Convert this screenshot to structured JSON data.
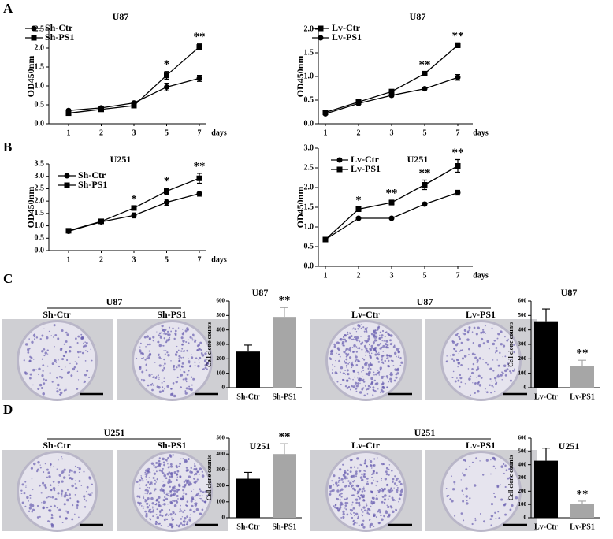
{
  "panel_labels": [
    "A",
    "B",
    "C",
    "D"
  ],
  "photo_groups": [
    {
      "title": "U87",
      "labels": [
        "Sh-Ctr",
        "Sh-PS1"
      ]
    },
    {
      "title": "U87",
      "labels": [
        "Lv-Ctr",
        "Lv-PS1"
      ]
    },
    {
      "title": "U251",
      "labels": [
        "Sh-Ctr",
        "Sh-PS1"
      ]
    },
    {
      "title": "U251",
      "labels": [
        "Lv-Ctr",
        "Lv-PS1"
      ]
    }
  ],
  "chart_data": [
    {
      "type": "line",
      "title": "U87",
      "x_label": "days",
      "y_label": "OD450nm",
      "categories": [
        "1",
        "2",
        "3",
        "5",
        "7"
      ],
      "ylim": [
        0,
        2.5
      ],
      "yticks": [
        {
          "value": 0,
          "label": "0.0"
        },
        0.5,
        {
          "value": 1,
          "label": "1.0"
        },
        1.5,
        {
          "value": 2,
          "label": "2.0"
        },
        2.5
      ],
      "series": [
        {
          "name": "Sh-Ctr",
          "color": "#000000",
          "marker": "circle",
          "values": [
            0.35,
            0.42,
            0.55,
            0.97,
            1.2
          ],
          "errors": [
            0.03,
            0.03,
            0.04,
            0.1,
            0.08
          ]
        },
        {
          "name": "Sh-PS1",
          "color": "#000000",
          "marker": "square",
          "values": [
            0.28,
            0.38,
            0.48,
            1.28,
            2.03
          ],
          "errors": [
            0.03,
            0.03,
            0.04,
            0.1,
            0.08
          ]
        }
      ],
      "annotations": [
        {
          "category": "5",
          "label": "*"
        },
        {
          "category": "7",
          "label": "**"
        }
      ]
    },
    {
      "type": "line",
      "title": "U87",
      "x_label": "days",
      "y_label": "OD450nm",
      "categories": [
        "1",
        "2",
        "3",
        "5",
        "7"
      ],
      "ylim": [
        0,
        2.0
      ],
      "yticks": [
        {
          "value": 0,
          "label": "0.0"
        },
        0.5,
        {
          "value": 1,
          "label": "1.0"
        },
        1.5,
        {
          "value": 2,
          "label": "2.0"
        }
      ],
      "series": [
        {
          "name": "Lv-Ctr",
          "color": "#000000",
          "marker": "square",
          "values": [
            0.24,
            0.46,
            0.68,
            1.06,
            1.66
          ],
          "errors": [
            0.02,
            0.03,
            0.03,
            0.04,
            0.05
          ]
        },
        {
          "name": "Lv-PS1",
          "color": "#000000",
          "marker": "circle",
          "values": [
            0.21,
            0.43,
            0.6,
            0.74,
            0.98
          ],
          "errors": [
            0.02,
            0.03,
            0.03,
            0.02,
            0.06
          ]
        }
      ],
      "annotations": [
        {
          "category": "5",
          "label": "**"
        },
        {
          "category": "7",
          "label": "**"
        }
      ]
    },
    {
      "type": "line",
      "title": "U251",
      "x_label": "days",
      "y_label": "OD450nm",
      "categories": [
        "1",
        "2",
        "3",
        "5",
        "7"
      ],
      "ylim": [
        0,
        3.5
      ],
      "yticks": [
        {
          "value": 0,
          "label": "0.0"
        },
        0.5,
        {
          "value": 1,
          "label": "1.0"
        },
        1.5,
        {
          "value": 2,
          "label": "2.0"
        },
        2.5,
        {
          "value": 3,
          "label": "3.0"
        },
        3.5
      ],
      "series": [
        {
          "name": "Sh-Ctr",
          "color": "#000000",
          "marker": "circle",
          "values": [
            0.78,
            1.16,
            1.42,
            1.95,
            2.3
          ],
          "errors": [
            0.04,
            0.04,
            0.1,
            0.12,
            0.1
          ]
        },
        {
          "name": "Sh-PS1",
          "color": "#000000",
          "marker": "square",
          "values": [
            0.8,
            1.18,
            1.72,
            2.4,
            2.92
          ],
          "errors": [
            0.04,
            0.04,
            0.08,
            0.12,
            0.2
          ]
        }
      ],
      "annotations": [
        {
          "category": "3",
          "label": "*"
        },
        {
          "category": "5",
          "label": "*"
        },
        {
          "category": "7",
          "label": "**"
        }
      ]
    },
    {
      "type": "line",
      "title": "U251",
      "x_label": "days",
      "y_label": "OD450nm",
      "categories": [
        "1",
        "2",
        "3",
        "5",
        "7"
      ],
      "ylim": [
        0,
        3.0
      ],
      "yticks": [
        {
          "value": 0,
          "label": "0.0"
        },
        0.5,
        {
          "value": 1,
          "label": "1.0"
        },
        1.5,
        {
          "value": 2,
          "label": "2.0"
        },
        2.5,
        {
          "value": 3,
          "label": "3.0"
        }
      ],
      "series": [
        {
          "name": "Lv-Ctr",
          "color": "#000000",
          "marker": "circle",
          "values": [
            0.68,
            1.22,
            1.22,
            1.58,
            1.87
          ],
          "errors": [
            0.03,
            0.03,
            0.03,
            0.04,
            0.06
          ]
        },
        {
          "name": "Lv-PS1",
          "color": "#000000",
          "marker": "square",
          "values": [
            0.68,
            1.45,
            1.62,
            2.07,
            2.55
          ],
          "errors": [
            0.03,
            0.05,
            0.06,
            0.12,
            0.16
          ]
        }
      ],
      "annotations": [
        {
          "category": "2",
          "label": "*"
        },
        {
          "category": "3",
          "label": "**"
        },
        {
          "category": "5",
          "label": "**"
        },
        {
          "category": "7",
          "label": "**"
        }
      ]
    },
    {
      "type": "bar",
      "title": "U87",
      "y_label": "Cell clone counts",
      "categories": [
        "Sh-Ctr",
        "Sh-PS1"
      ],
      "values": [
        250,
        490
      ],
      "errors": [
        45,
        65
      ],
      "colors": [
        "#000000",
        "#a6a6a6"
      ],
      "ylim": [
        0,
        600
      ],
      "yticks": [
        0,
        100,
        200,
        300,
        400,
        500,
        600
      ],
      "annotations": [
        {
          "category": "Sh-PS1",
          "label": "**"
        }
      ]
    },
    {
      "type": "bar",
      "title": "U87",
      "y_label": "Cell clone counts",
      "categories": [
        "Lv-Ctr",
        "Lv-PS1"
      ],
      "values": [
        460,
        150
      ],
      "errors": [
        85,
        40
      ],
      "colors": [
        "#000000",
        "#a6a6a6"
      ],
      "ylim": [
        0,
        600
      ],
      "yticks": [
        0,
        100,
        200,
        300,
        400,
        500,
        600
      ],
      "annotations": [
        {
          "category": "Lv-PS1",
          "label": "**"
        }
      ]
    },
    {
      "type": "bar",
      "title": "U251",
      "y_label": "Cell clone counts",
      "categories": [
        "Sh-Ctr",
        "Sh-PS1"
      ],
      "values": [
        245,
        400
      ],
      "errors": [
        40,
        65
      ],
      "colors": [
        "#000000",
        "#a6a6a6"
      ],
      "ylim": [
        0,
        500
      ],
      "yticks": [
        0,
        100,
        200,
        300,
        400,
        500
      ],
      "annotations": [
        {
          "category": "Sh-PS1",
          "label": "**"
        }
      ]
    },
    {
      "type": "bar",
      "title": "U251",
      "y_label": "Cell clone counts",
      "categories": [
        "Lv-Ctr",
        "Lv-PS1"
      ],
      "values": [
        430,
        105
      ],
      "errors": [
        95,
        20
      ],
      "colors": [
        "#000000",
        "#a6a6a6"
      ],
      "ylim": [
        0,
        600
      ],
      "yticks": [
        0,
        100,
        200,
        300,
        400,
        500,
        600
      ],
      "annotations": [
        {
          "category": "Lv-PS1",
          "label": "**"
        }
      ]
    }
  ]
}
